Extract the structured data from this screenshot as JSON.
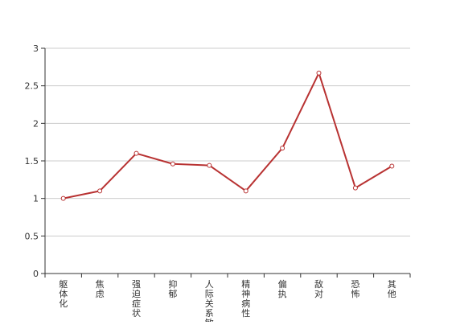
{
  "chart_data": {
    "type": "line",
    "categories": [
      "躯体化",
      "焦虑",
      "强迫症状",
      "抑郁",
      "人际关系敏感",
      "精神病性",
      "偏执",
      "敌对",
      "恐怖",
      "其他"
    ],
    "series": [
      {
        "values": [
          1.0,
          1.1,
          1.6,
          1.46,
          1.44,
          1.1,
          1.67,
          2.67,
          1.14,
          1.43
        ]
      }
    ],
    "ylim": [
      0,
      3
    ],
    "yticks": [
      0,
      0.5,
      1,
      1.5,
      2,
      2.5,
      3
    ],
    "ytick_labels": [
      "0",
      "0.5",
      "1",
      "1.5",
      "2",
      "2.5",
      "3"
    ],
    "grid": true,
    "colors": {
      "line": "#b83232",
      "grid": "#cccccc",
      "axis": "#333333",
      "marker_fill": "#ffffff"
    }
  }
}
